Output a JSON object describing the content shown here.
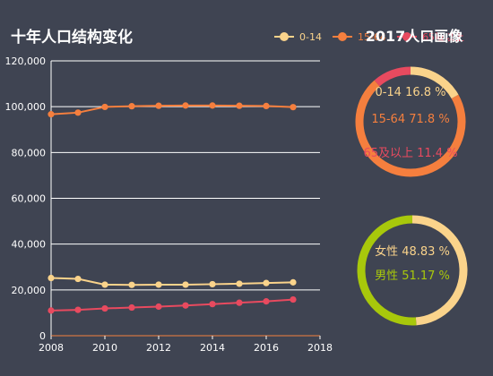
{
  "chart_data": [
    {
      "type": "line",
      "title": "十年人口结构变化",
      "x": [
        2008,
        2009,
        2010,
        2011,
        2012,
        2013,
        2014,
        2015,
        2016,
        2017
      ],
      "xlim": [
        2008,
        2018
      ],
      "xticks": [
        "2008",
        "2010",
        "2012",
        "2014",
        "2016",
        "2018"
      ],
      "ylim": [
        0,
        120000
      ],
      "yticks": [
        "0",
        "20,000",
        "40,000",
        "60,000",
        "80,000",
        "100,000",
        "120,000"
      ],
      "grid": true,
      "legend_position": "top-right",
      "series": [
        {
          "name": "0-14",
          "color": "#fad38b",
          "values": [
            25200,
            24800,
            22300,
            22200,
            22300,
            22300,
            22500,
            22700,
            23000,
            23300
          ]
        },
        {
          "name": "15-64",
          "color": "#f57f3e",
          "values": [
            96700,
            97400,
            99900,
            100200,
            100400,
            100500,
            100500,
            100400,
            100300,
            99800
          ]
        },
        {
          "name": "65及以上",
          "color": "#e84a5f",
          "values": [
            11000,
            11300,
            11900,
            12300,
            12700,
            13200,
            13800,
            14400,
            15000,
            15800
          ]
        }
      ]
    },
    {
      "type": "pie",
      "style": "donut",
      "title": "2017人口画像",
      "slices": [
        {
          "name": "0-14",
          "value": 16.8,
          "label": "0-14  16.8 %",
          "color": "#fad38b"
        },
        {
          "name": "15-64",
          "value": 71.8,
          "label": "15-64  71.8 %",
          "color": "#f57f3e"
        },
        {
          "name": "65及以上",
          "value": 11.4,
          "label": "65及以上  11.4 %",
          "color": "#e84a5f"
        }
      ]
    },
    {
      "type": "pie",
      "style": "donut",
      "slices": [
        {
          "name": "女性",
          "value": 48.83,
          "label": "女性  48.83 %",
          "color": "#fad38b"
        },
        {
          "name": "男性",
          "value": 51.17,
          "label": "男性  51.17 %",
          "color": "#a8c80b"
        }
      ]
    }
  ]
}
